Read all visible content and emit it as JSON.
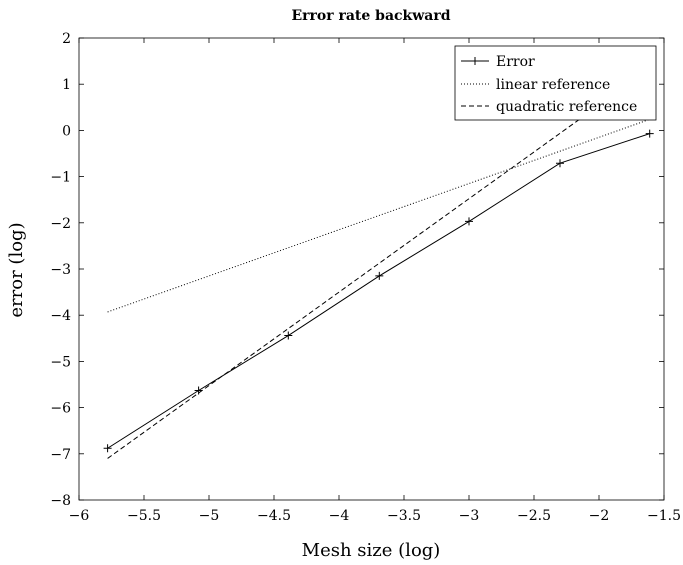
{
  "chart_data": {
    "type": "line",
    "title": "Error rate backward",
    "xlabel": "Mesh size (log)",
    "ylabel": "error (log)",
    "xlim": [
      -6,
      -1.5
    ],
    "ylim": [
      -8,
      2
    ],
    "xticks": [
      -6,
      -5.5,
      -5,
      -4.5,
      -4,
      -3.5,
      -3,
      -2.5,
      -2,
      -1.5
    ],
    "yticks": [
      -8,
      -7,
      -6,
      -5,
      -4,
      -3,
      -2,
      -1,
      0,
      1,
      2
    ],
    "xtick_labels": [
      "−6",
      "−5.5",
      "−5",
      "−4.5",
      "−4",
      "−3.5",
      "−3",
      "−2.5",
      "−2",
      "−1.5"
    ],
    "ytick_labels": [
      "−8",
      "−7",
      "−6",
      "−5",
      "−4",
      "−3",
      "−2",
      "−1",
      "0",
      "1",
      "2"
    ],
    "legend_position": "top-right",
    "grid": false,
    "series": [
      {
        "name": "Error",
        "style": "solid",
        "marker": "+",
        "color": "#000000",
        "x": [
          -5.78,
          -5.08,
          -4.39,
          -3.69,
          -3.0,
          -2.3,
          -1.61
        ],
        "y": [
          -6.88,
          -5.63,
          -4.44,
          -3.15,
          -1.97,
          -0.71,
          -0.07
        ]
      },
      {
        "name": "linear reference",
        "style": "dotted",
        "marker": "none",
        "color": "#000000",
        "x": [
          -5.78,
          -1.61
        ],
        "y": [
          -3.93,
          0.24
        ]
      },
      {
        "name": "quadratic reference",
        "style": "dashed",
        "marker": "none",
        "color": "#000000",
        "x": [
          -5.78,
          -2.15
        ],
        "y": [
          -7.1,
          0.24
        ]
      }
    ]
  }
}
